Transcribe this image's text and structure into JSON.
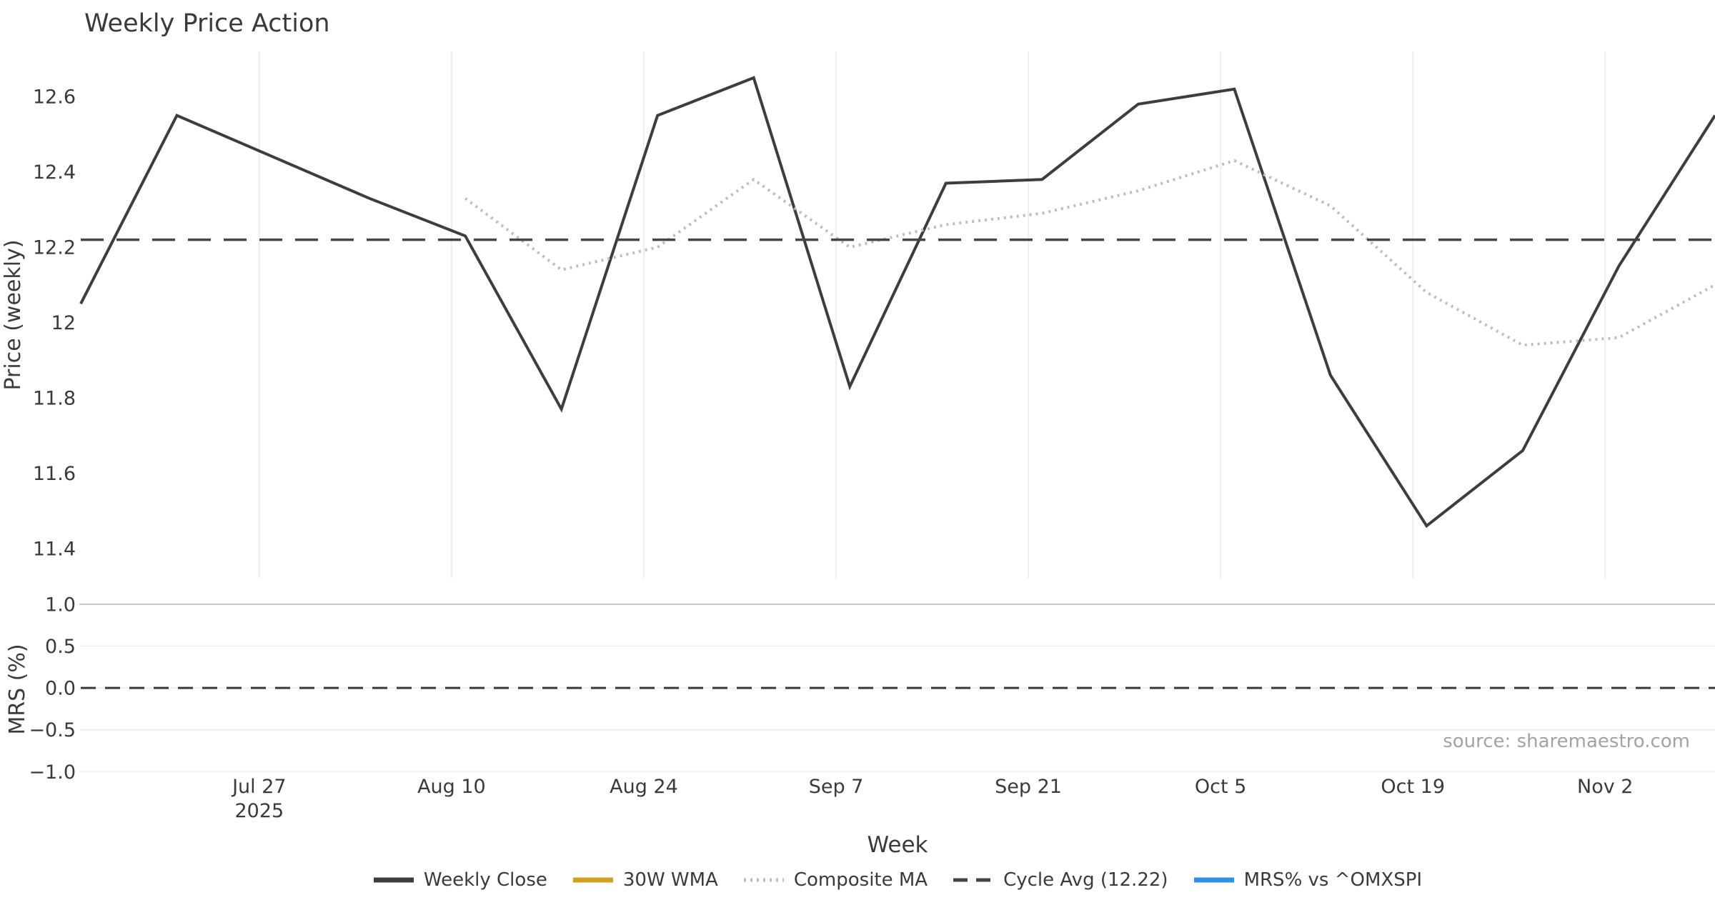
{
  "title": "Weekly Price Action",
  "source_note": "source: sharemaestro.com",
  "chart_data": {
    "type": "line",
    "title": "Weekly Price Action",
    "xlabel": "Week",
    "x_unit": "weekly (one point per week)",
    "x_days": [
      0,
      7,
      14,
      21,
      28,
      35,
      42,
      49,
      56,
      63,
      70,
      77,
      84,
      91,
      98,
      105,
      112,
      119
    ],
    "x_week_labels": [
      "Jul 14",
      "Jul 21",
      "Jul 28",
      "Aug 4",
      "Aug 11",
      "Aug 18",
      "Aug 25",
      "Sep 1",
      "Sep 8",
      "Sep 15",
      "Sep 22",
      "Sep 29",
      "Oct 6",
      "Oct 13",
      "Oct 20",
      "Oct 27",
      "Nov 3",
      "Nov 10"
    ],
    "xlim_days": [
      0,
      119
    ],
    "xticks": [
      {
        "day": 13,
        "lines": [
          "Jul 27",
          "2025"
        ]
      },
      {
        "day": 27,
        "lines": [
          "Aug 10"
        ]
      },
      {
        "day": 41,
        "lines": [
          "Aug 24"
        ]
      },
      {
        "day": 55,
        "lines": [
          "Sep 7"
        ]
      },
      {
        "day": 69,
        "lines": [
          "Sep 21"
        ]
      },
      {
        "day": 83,
        "lines": [
          "Oct 5"
        ]
      },
      {
        "day": 97,
        "lines": [
          "Oct 19"
        ]
      },
      {
        "day": 111,
        "lines": [
          "Nov 2"
        ]
      }
    ],
    "panels": [
      {
        "name": "price",
        "ylabel": "Price (weekly)",
        "ylim": [
          11.32,
          12.72
        ],
        "yticks": [
          {
            "value": 12.6,
            "label": "12.6"
          },
          {
            "value": 12.4,
            "label": "12.4"
          },
          {
            "value": 12.2,
            "label": "12.2"
          },
          {
            "value": 12.0,
            "label": "12"
          },
          {
            "value": 11.8,
            "label": "11.8"
          },
          {
            "value": 11.6,
            "label": "11.6"
          },
          {
            "value": 11.4,
            "label": "11.4"
          }
        ],
        "grid": "vertical-only",
        "series": [
          {
            "name": "Weekly Close",
            "style": "solid",
            "color": "#3d3d3d",
            "width": 4,
            "values": [
              12.05,
              12.55,
              12.44,
              12.33,
              12.23,
              11.77,
              12.55,
              12.65,
              11.83,
              12.37,
              12.38,
              12.58,
              12.62,
              11.86,
              11.46,
              11.66,
              12.15,
              12.55
            ]
          },
          {
            "name": "Composite MA",
            "style": "dotted",
            "color": "#bdbdbd",
            "width": 4,
            "values": [
              null,
              null,
              null,
              null,
              12.33,
              12.14,
              12.2,
              12.38,
              12.2,
              12.26,
              12.29,
              12.35,
              12.43,
              12.31,
              12.08,
              11.94,
              11.96,
              12.1
            ]
          },
          {
            "name": "Cycle Avg (12.22)",
            "style": "dashed",
            "color": "#454545",
            "width": 3.5,
            "constant": 12.22
          },
          {
            "name": "30W WMA",
            "style": "solid",
            "color": "#d5a021",
            "width": 4,
            "values": [],
            "note": "in legend, not visible in plot area"
          }
        ]
      },
      {
        "name": "mrs",
        "ylabel": "MRS (%)",
        "ylim": [
          -1.04,
          1.0
        ],
        "yticks": [
          {
            "value": 1.0,
            "label": "1.0"
          },
          {
            "value": 0.5,
            "label": "0.5"
          },
          {
            "value": 0.0,
            "label": "0.0"
          },
          {
            "value": -0.5,
            "label": "−0.5"
          },
          {
            "value": -1.0,
            "label": "−1.0"
          }
        ],
        "grid": "horizontal-only",
        "series": [
          {
            "name": "zero reference",
            "style": "dashed",
            "color": "#3a3a3a",
            "width": 3,
            "constant": 0.0
          },
          {
            "name": "MRS% vs ^OMXSPI",
            "style": "solid",
            "color": "#2E90E8",
            "width": 4,
            "values": [],
            "note": "in legend, not visible in plot area"
          }
        ]
      }
    ],
    "legend": [
      {
        "label": "Weekly Close",
        "style": "solid",
        "color": "#3d3d3d"
      },
      {
        "label": "30W WMA",
        "style": "solid",
        "color": "#d5a021"
      },
      {
        "label": "Composite MA",
        "style": "dotted",
        "color": "#bdbdbd"
      },
      {
        "label": "Cycle Avg (12.22)",
        "style": "dashed",
        "color": "#454545"
      },
      {
        "label": "MRS% vs ^OMXSPI",
        "style": "solid",
        "color": "#2E90E8"
      }
    ],
    "legend_position": "bottom-center",
    "colors": {
      "background": "#ffffff",
      "grid_vertical": "#efefef",
      "grid_horizontal_major": "#c9c9c9",
      "grid_horizontal_minor": "#f0f0f0",
      "tick_text": "#3a3a3a",
      "source_text": "#a3a3a3"
    }
  }
}
